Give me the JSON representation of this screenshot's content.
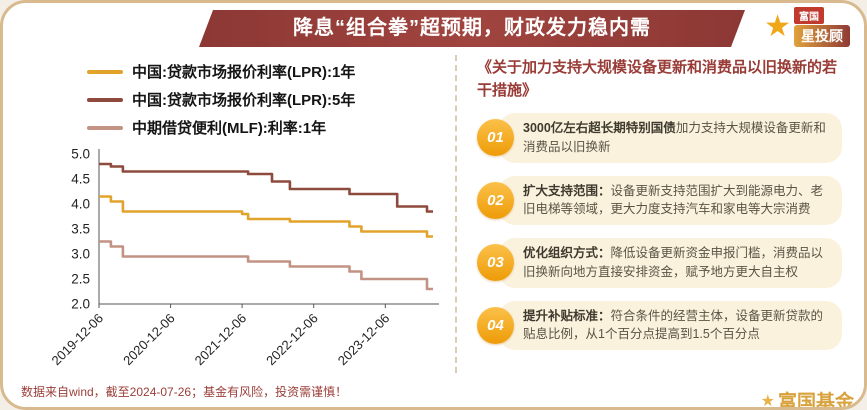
{
  "header": {
    "title": "降息“组合拳”超预期，财政发力稳内需",
    "banner_color": "#96403B",
    "text_color": "#FFFFFF"
  },
  "logo": {
    "brand": "富国",
    "product": "星投顾",
    "star_icon_color": "#F0A818"
  },
  "chart_data": {
    "type": "line",
    "line_style": "step",
    "title": "",
    "xlabel": "",
    "ylabel": "",
    "grid": false,
    "legend_position": "top-left",
    "ylim": [
      2.0,
      5.0
    ],
    "y_ticks": [
      2.0,
      2.5,
      3.0,
      3.5,
      4.0,
      4.5,
      5.0
    ],
    "x_max_months": 56,
    "x_ticks": [
      {
        "m": 0,
        "label": "2019-12-06"
      },
      {
        "m": 12,
        "label": "2020-12-06"
      },
      {
        "m": 24,
        "label": "2021-12-06"
      },
      {
        "m": 36,
        "label": "2022-12-06"
      },
      {
        "m": 48,
        "label": "2023-12-06"
      }
    ],
    "series": [
      {
        "name": "中国:贷款市场报价利率(LPR):1年",
        "color": "#E2A32C",
        "points": [
          [
            0,
            4.15
          ],
          [
            2,
            4.05
          ],
          [
            4,
            3.85
          ],
          [
            24,
            3.8
          ],
          [
            25,
            3.7
          ],
          [
            32,
            3.65
          ],
          [
            42,
            3.55
          ],
          [
            44,
            3.45
          ],
          [
            55,
            3.35
          ]
        ]
      },
      {
        "name": "中国:贷款市场报价利率(LPR):5年",
        "color": "#8E4A3D",
        "points": [
          [
            0,
            4.8
          ],
          [
            2,
            4.75
          ],
          [
            4,
            4.65
          ],
          [
            25,
            4.6
          ],
          [
            29,
            4.45
          ],
          [
            32,
            4.3
          ],
          [
            42,
            4.2
          ],
          [
            50,
            3.95
          ],
          [
            55,
            3.85
          ]
        ]
      },
      {
        "name": "中期借贷便利(MLF):利率:1年",
        "color": "#C29384",
        "points": [
          [
            0,
            3.25
          ],
          [
            2,
            3.15
          ],
          [
            4,
            2.95
          ],
          [
            25,
            2.85
          ],
          [
            32,
            2.75
          ],
          [
            42,
            2.65
          ],
          [
            44,
            2.5
          ],
          [
            55,
            2.3
          ]
        ]
      }
    ]
  },
  "right_panel": {
    "title": "《关于加力支持大规模设备更新和消费品以旧换新的若干措施》",
    "accent_color": "#F5A31B",
    "items": [
      {
        "number": "01",
        "bold": "3000亿左右超长期特别国债",
        "rest": "加力支持大规模设备更新和消费品以旧换新"
      },
      {
        "number": "02",
        "bold": "扩大支持范围：",
        "rest": "设备更新支持范围扩大到能源电力、老旧电梯等领域，更大力度支持汽车和家电等大宗消费"
      },
      {
        "number": "03",
        "bold": "优化组织方式：",
        "rest": "降低设备更新资金申报门槛，消费品以旧换新向地方直接安排资金，赋予地方更大自主权"
      },
      {
        "number": "04",
        "bold": "提升补贴标准：",
        "rest": "符合条件的经营主体，设备更新贷款的贴息比例，从1个百分点提高到1.5个百分点"
      }
    ]
  },
  "footer": {
    "disclaimer": "数据来自wind，截至2024-07-26；基金有风险，投资需谨慎！",
    "brand_mark": "富国基金"
  }
}
